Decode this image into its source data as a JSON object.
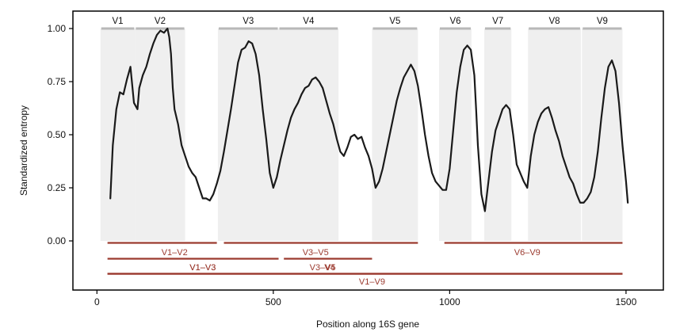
{
  "chart_data": {
    "type": "line",
    "title": "",
    "xlabel": "Position along 16S gene",
    "ylabel": "Standardized entropy",
    "xlim": [
      -60,
      1560
    ],
    "ylim": [
      -0.2,
      1.065
    ],
    "x_ticks": [
      0,
      500,
      1000,
      1500
    ],
    "x_tick_labels": [
      "0",
      "500",
      "1000",
      "1500"
    ],
    "y_ticks": [
      0.0,
      0.25,
      0.5,
      0.75,
      1.0
    ],
    "y_tick_labels": [
      "0.00",
      "0.25",
      "0.50",
      "0.75",
      "1.00"
    ],
    "series": [
      {
        "name": "Standardized entropy",
        "color": "#1a1a1a",
        "x": [
          38,
          45,
          55,
          65,
          75,
          85,
          95,
          105,
          115,
          120,
          130,
          140,
          150,
          160,
          170,
          180,
          190,
          200,
          205,
          210,
          215,
          220,
          230,
          240,
          250,
          260,
          270,
          280,
          290,
          300,
          310,
          320,
          330,
          340,
          350,
          360,
          370,
          380,
          390,
          400,
          410,
          420,
          430,
          440,
          450,
          460,
          465,
          470,
          480,
          490,
          500,
          510,
          520,
          530,
          540,
          550,
          560,
          570,
          580,
          590,
          600,
          610,
          620,
          630,
          640,
          650,
          660,
          670,
          680,
          690,
          700,
          710,
          720,
          730,
          740,
          750,
          760,
          770,
          780,
          790,
          800,
          810,
          820,
          830,
          840,
          850,
          860,
          870,
          880,
          890,
          900,
          910,
          920,
          930,
          940,
          950,
          960,
          970,
          980,
          990,
          1000,
          1010,
          1020,
          1030,
          1040,
          1050,
          1060,
          1070,
          1075,
          1080,
          1090,
          1100,
          1110,
          1120,
          1130,
          1140,
          1150,
          1160,
          1170,
          1180,
          1190,
          1200,
          1210,
          1220,
          1230,
          1240,
          1250,
          1260,
          1270,
          1280,
          1290,
          1300,
          1310,
          1320,
          1330,
          1340,
          1350,
          1360,
          1370,
          1380,
          1390,
          1400,
          1410,
          1420,
          1430,
          1440,
          1450,
          1460,
          1470,
          1480,
          1490,
          1500,
          1505
        ],
        "values": [
          0.2,
          0.45,
          0.62,
          0.7,
          0.69,
          0.76,
          0.82,
          0.65,
          0.62,
          0.72,
          0.78,
          0.82,
          0.88,
          0.93,
          0.97,
          0.99,
          0.98,
          1.0,
          0.96,
          0.88,
          0.72,
          0.62,
          0.55,
          0.45,
          0.4,
          0.35,
          0.32,
          0.3,
          0.25,
          0.2,
          0.2,
          0.19,
          0.22,
          0.27,
          0.33,
          0.42,
          0.52,
          0.62,
          0.73,
          0.84,
          0.9,
          0.91,
          0.94,
          0.93,
          0.88,
          0.78,
          0.7,
          0.62,
          0.48,
          0.32,
          0.25,
          0.3,
          0.38,
          0.45,
          0.52,
          0.58,
          0.62,
          0.65,
          0.69,
          0.72,
          0.73,
          0.76,
          0.77,
          0.75,
          0.72,
          0.66,
          0.6,
          0.55,
          0.48,
          0.42,
          0.4,
          0.44,
          0.49,
          0.5,
          0.48,
          0.49,
          0.44,
          0.4,
          0.34,
          0.25,
          0.28,
          0.34,
          0.42,
          0.5,
          0.58,
          0.66,
          0.72,
          0.77,
          0.8,
          0.83,
          0.8,
          0.73,
          0.62,
          0.5,
          0.4,
          0.32,
          0.28,
          0.26,
          0.24,
          0.24,
          0.34,
          0.52,
          0.7,
          0.82,
          0.9,
          0.92,
          0.9,
          0.78,
          0.62,
          0.45,
          0.22,
          0.14,
          0.28,
          0.42,
          0.52,
          0.57,
          0.62,
          0.64,
          0.62,
          0.5,
          0.36,
          0.32,
          0.28,
          0.25,
          0.4,
          0.5,
          0.56,
          0.6,
          0.62,
          0.63,
          0.58,
          0.52,
          0.47,
          0.4,
          0.35,
          0.3,
          0.27,
          0.22,
          0.18,
          0.18,
          0.2,
          0.23,
          0.3,
          0.42,
          0.58,
          0.72,
          0.82,
          0.85,
          0.8,
          0.65,
          0.45,
          0.28,
          0.18
        ]
      }
    ],
    "variable_regions": [
      {
        "label": "V1",
        "start": 10,
        "end": 108
      },
      {
        "label": "V2",
        "start": 108,
        "end": 250
      },
      {
        "label": "V3",
        "start": 343,
        "end": 515
      },
      {
        "label": "V4",
        "start": 515,
        "end": 685
      },
      {
        "label": "V5",
        "start": 780,
        "end": 910
      },
      {
        "label": "V6",
        "start": 970,
        "end": 1062
      },
      {
        "label": "V7",
        "start": 1098,
        "end": 1175
      },
      {
        "label": "V8",
        "start": 1222,
        "end": 1372
      },
      {
        "label": "V9",
        "start": 1375,
        "end": 1490
      }
    ],
    "amplicons": [
      {
        "label": "V1–V2",
        "row": 1,
        "start": 30,
        "end": 340
      },
      {
        "label": "V3–V5",
        "row": 1,
        "start": 360,
        "end": 910
      },
      {
        "label": "V6–V9",
        "row": 1,
        "start": 985,
        "end": 1490
      },
      {
        "label": "V1–V3",
        "row": 2,
        "start": 30,
        "end": 515
      },
      {
        "label": "V3–V5",
        "row": 2,
        "start": 530,
        "end": 780
      },
      {
        "label": "V1–V3",
        "row": 3,
        "start": 30,
        "end": 1490
      },
      {
        "label": "V4",
        "row": 3,
        "start": 30,
        "end": 1490
      },
      {
        "label": "V1–V9",
        "row": 4,
        "start": 30,
        "end": 1490
      }
    ],
    "colors": {
      "line": "#1a1a1a",
      "region_fill": "#efefef",
      "region_bar": "#b8b8b8",
      "amplicon": "#9b3a2f",
      "frame": "#000000"
    }
  }
}
